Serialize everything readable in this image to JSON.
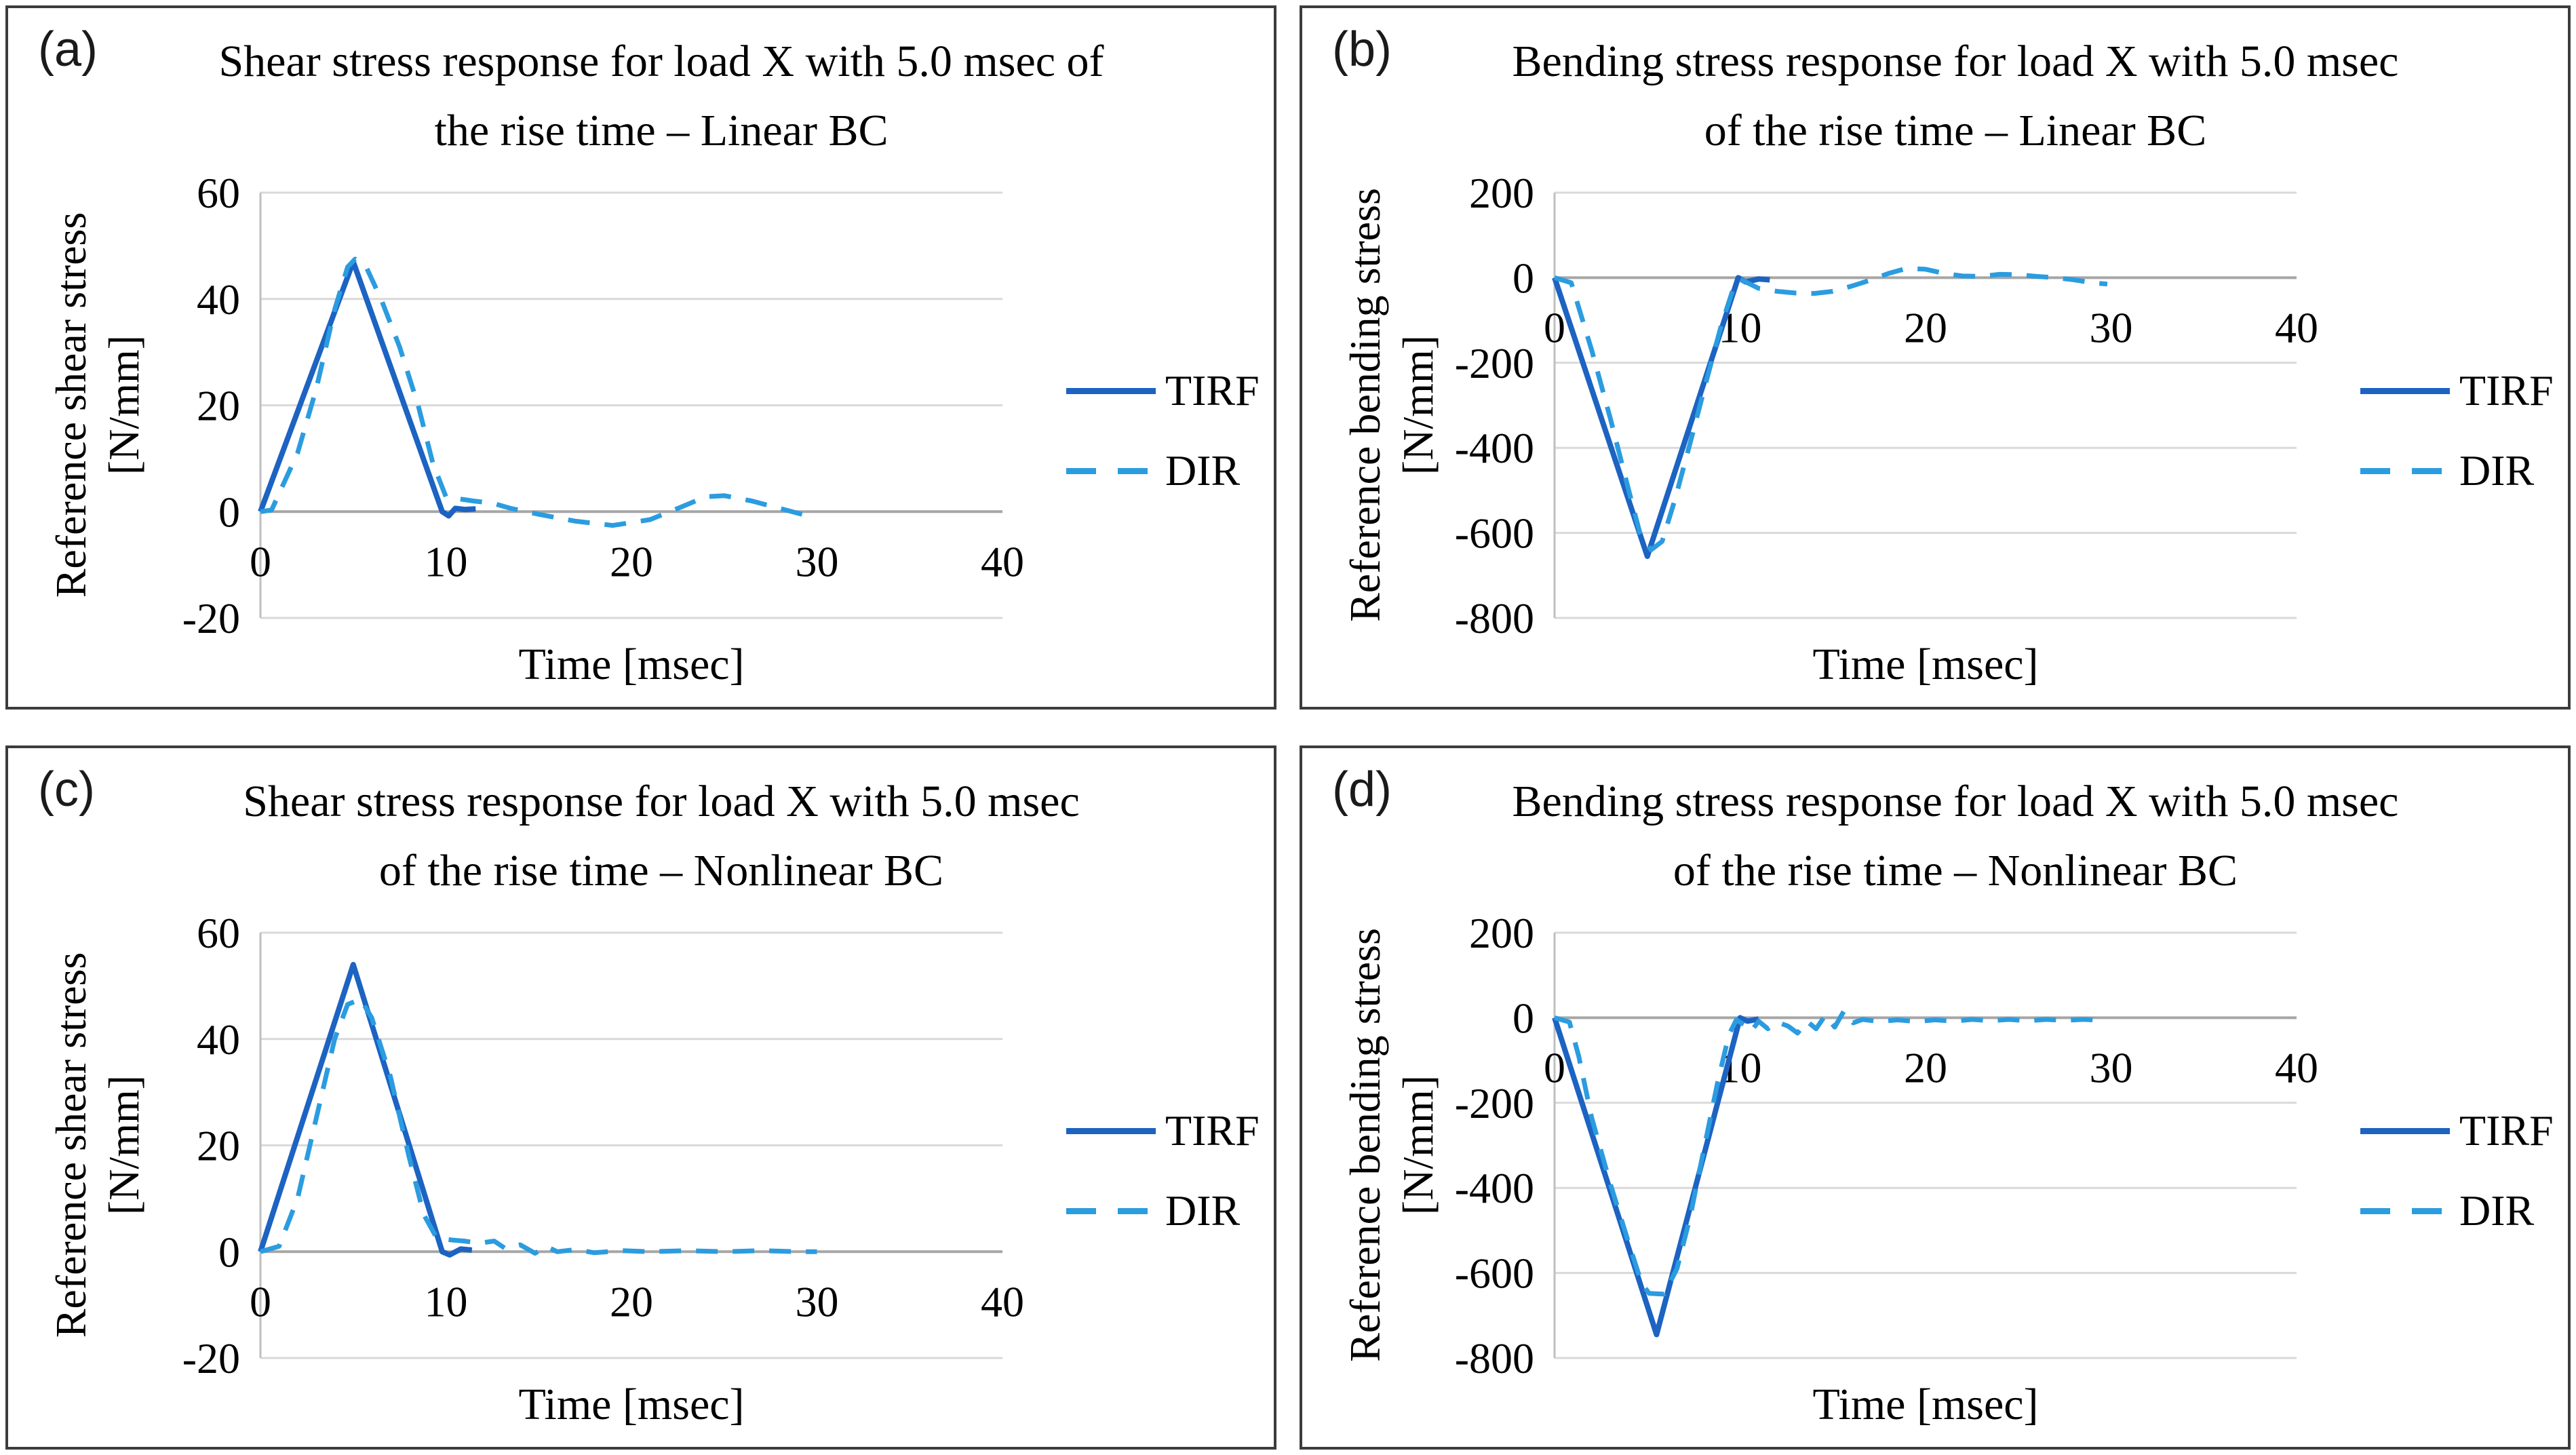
{
  "colors": {
    "tirf": "#1c63c2",
    "dir": "#2b9ce0",
    "grid": "#d9d9d9",
    "zero_line": "#a6a6a6",
    "axis_line": "#bfbfbf",
    "panel_border": "#3c3c3c",
    "text": "#000000"
  },
  "chart_data": [
    {
      "type": "line",
      "panel_label": "(a)",
      "title_line1": "Shear stress response for load X with 5.0 msec of",
      "title_line2": "the rise time – Linear BC",
      "ylabel_line1": "Reference shear stress",
      "ylabel_line2": "[N/mm]",
      "xlabel": "Time [msec]",
      "xlim": [
        0,
        40
      ],
      "ylim": [
        -20,
        60
      ],
      "xticks": [
        0,
        10,
        20,
        30,
        40
      ],
      "yticks": [
        60,
        40,
        20,
        0,
        -20
      ],
      "grid": true,
      "legend_position": "right",
      "series": [
        {
          "name": "TIRF",
          "style": "solid",
          "color_key": "tirf",
          "points": [
            [
              0,
              0
            ],
            [
              5,
              47
            ],
            [
              9.8,
              0
            ],
            [
              10.15,
              -0.8
            ],
            [
              10.5,
              0.6
            ],
            [
              11,
              0.4
            ],
            [
              11.6,
              0.5
            ]
          ]
        },
        {
          "name": "DIR",
          "style": "dashed",
          "color_key": "dir",
          "points": [
            [
              0,
              0
            ],
            [
              0.6,
              0.3
            ],
            [
              2,
              11
            ],
            [
              3,
              23
            ],
            [
              4,
              38
            ],
            [
              4.7,
              46
            ],
            [
              5.1,
              47.5
            ],
            [
              5.7,
              46
            ],
            [
              6.5,
              40
            ],
            [
              7.5,
              31
            ],
            [
              8.5,
              20
            ],
            [
              9.3,
              9
            ],
            [
              10,
              2.8
            ],
            [
              10.7,
              2.4
            ],
            [
              11.5,
              2
            ],
            [
              12.5,
              1.6
            ],
            [
              13.5,
              0.6
            ],
            [
              15,
              -0.5
            ],
            [
              17,
              -1.8
            ],
            [
              19,
              -2.6
            ],
            [
              21,
              -1.5
            ],
            [
              22.5,
              0.6
            ],
            [
              24,
              2.8
            ],
            [
              25,
              3
            ],
            [
              26.5,
              2
            ],
            [
              28,
              0.6
            ],
            [
              29.3,
              -0.6
            ]
          ]
        }
      ]
    },
    {
      "type": "line",
      "panel_label": "(b)",
      "title_line1": "Bending stress response for load X with 5.0 msec",
      "title_line2": "of the rise time – Linear BC",
      "ylabel_line1": "Reference bending stress",
      "ylabel_line2": "[N/mm]",
      "xlabel": "Time [msec]",
      "xlim": [
        0,
        40
      ],
      "ylim": [
        -800,
        200
      ],
      "xticks": [
        0,
        10,
        20,
        30,
        40
      ],
      "yticks": [
        200,
        0,
        -200,
        -400,
        -600,
        -800
      ],
      "grid": true,
      "legend_position": "right",
      "series": [
        {
          "name": "TIRF",
          "style": "solid",
          "color_key": "tirf",
          "points": [
            [
              0,
              0
            ],
            [
              5,
              -655
            ],
            [
              9.9,
              0
            ],
            [
              10.3,
              -10
            ],
            [
              11,
              -3
            ],
            [
              11.6,
              -5
            ]
          ]
        },
        {
          "name": "DIR",
          "style": "dashed",
          "color_key": "dir",
          "points": [
            [
              0,
              0
            ],
            [
              0.9,
              -12
            ],
            [
              2,
              -170
            ],
            [
              3,
              -330
            ],
            [
              4,
              -500
            ],
            [
              4.6,
              -600
            ],
            [
              5.2,
              -640
            ],
            [
              5.8,
              -620
            ],
            [
              6.5,
              -520
            ],
            [
              7.3,
              -390
            ],
            [
              8.2,
              -240
            ],
            [
              9,
              -110
            ],
            [
              9.6,
              -30
            ],
            [
              10,
              -3
            ],
            [
              10.4,
              -12
            ],
            [
              11,
              -25
            ],
            [
              12,
              -32
            ],
            [
              13,
              -36
            ],
            [
              14,
              -37
            ],
            [
              15,
              -32
            ],
            [
              16,
              -20
            ],
            [
              17,
              -6
            ],
            [
              18,
              10
            ],
            [
              19,
              22
            ],
            [
              20,
              20
            ],
            [
              21,
              10
            ],
            [
              22,
              4
            ],
            [
              23,
              3
            ],
            [
              24,
              8
            ],
            [
              25,
              7
            ],
            [
              26,
              3
            ],
            [
              27,
              0
            ],
            [
              28,
              -5
            ],
            [
              29,
              -12
            ],
            [
              29.8,
              -15
            ]
          ]
        }
      ]
    },
    {
      "type": "line",
      "panel_label": "(c)",
      "title_line1": "Shear stress response for load X with 5.0 msec",
      "title_line2": "of the rise time – Nonlinear BC",
      "ylabel_line1": "Reference shear stress",
      "ylabel_line2": "[N/mm]",
      "xlabel": "Time [msec]",
      "xlim": [
        0,
        40
      ],
      "ylim": [
        -20,
        60
      ],
      "xticks": [
        0,
        10,
        20,
        30,
        40
      ],
      "yticks": [
        60,
        40,
        20,
        0,
        -20
      ],
      "grid": true,
      "legend_position": "right",
      "series": [
        {
          "name": "TIRF",
          "style": "solid",
          "color_key": "tirf",
          "points": [
            [
              0,
              0
            ],
            [
              5,
              54
            ],
            [
              9.8,
              0
            ],
            [
              10.2,
              -0.6
            ],
            [
              10.8,
              0.5
            ],
            [
              11.4,
              0.3
            ]
          ]
        },
        {
          "name": "DIR",
          "style": "dashed",
          "color_key": "dir",
          "points": [
            [
              0,
              0
            ],
            [
              1,
              1
            ],
            [
              2,
              10
            ],
            [
              3,
              25
            ],
            [
              4,
              40
            ],
            [
              4.7,
              46.5
            ],
            [
              5.4,
              47.5
            ],
            [
              6,
              44
            ],
            [
              7,
              33
            ],
            [
              8,
              18
            ],
            [
              8.8,
              7
            ],
            [
              9.5,
              2.6
            ],
            [
              10.3,
              2.2
            ],
            [
              11,
              2
            ],
            [
              11.8,
              1.6
            ],
            [
              12.6,
              2
            ],
            [
              13.2,
              0.6
            ],
            [
              14,
              1.3
            ],
            [
              14.8,
              -0.3
            ],
            [
              15.4,
              1
            ],
            [
              16,
              0
            ],
            [
              17,
              0.4
            ],
            [
              18,
              -0.2
            ],
            [
              19.5,
              0.2
            ],
            [
              21,
              0
            ],
            [
              23,
              0.2
            ],
            [
              25,
              0
            ],
            [
              27,
              0.2
            ],
            [
              29,
              0
            ],
            [
              30,
              0
            ]
          ]
        }
      ]
    },
    {
      "type": "line",
      "panel_label": "(d)",
      "title_line1": "Bending stress response for load X with 5.0 msec",
      "title_line2": "of the rise time – Nonlinear BC",
      "ylabel_line1": "Reference bending stress",
      "ylabel_line2": "[N/mm]",
      "xlabel": "Time [msec]",
      "xlim": [
        0,
        40
      ],
      "ylim": [
        -800,
        200
      ],
      "xticks": [
        0,
        10,
        20,
        30,
        40
      ],
      "yticks": [
        200,
        0,
        -200,
        -400,
        -600,
        -800
      ],
      "grid": true,
      "legend_position": "right",
      "series": [
        {
          "name": "TIRF",
          "style": "solid",
          "color_key": "tirf",
          "points": [
            [
              0,
              0
            ],
            [
              5.5,
              -745
            ],
            [
              10,
              0
            ],
            [
              10.4,
              -8
            ],
            [
              11,
              -3
            ]
          ]
        },
        {
          "name": "DIR",
          "style": "dashed",
          "color_key": "dir",
          "points": [
            [
              0,
              0
            ],
            [
              0.8,
              -10
            ],
            [
              1.3,
              -90
            ],
            [
              2,
              -235
            ],
            [
              3,
              -390
            ],
            [
              4,
              -530
            ],
            [
              4.7,
              -625
            ],
            [
              5.1,
              -648
            ],
            [
              5.9,
              -650
            ],
            [
              6.6,
              -590
            ],
            [
              7.3,
              -470
            ],
            [
              8,
              -320
            ],
            [
              8.8,
              -150
            ],
            [
              9.4,
              -40
            ],
            [
              9.8,
              -5
            ],
            [
              10.2,
              -16
            ],
            [
              10.6,
              -32
            ],
            [
              11,
              -8
            ],
            [
              11.5,
              -26
            ],
            [
              12,
              -10
            ],
            [
              12.6,
              -20
            ],
            [
              13.1,
              -36
            ],
            [
              13.6,
              -8
            ],
            [
              14.1,
              -26
            ],
            [
              14.6,
              6
            ],
            [
              15.1,
              -22
            ],
            [
              15.6,
              16
            ],
            [
              16.1,
              -12
            ],
            [
              16.6,
              -4
            ],
            [
              17.5,
              -9
            ],
            [
              18.5,
              -5
            ],
            [
              19.5,
              -9
            ],
            [
              20.5,
              -5
            ],
            [
              21.5,
              -8
            ],
            [
              22.5,
              -4
            ],
            [
              23.5,
              -7
            ],
            [
              24.5,
              -4
            ],
            [
              25.5,
              -7
            ],
            [
              26.5,
              -4
            ],
            [
              27.5,
              -6
            ],
            [
              28.5,
              -4
            ],
            [
              29.5,
              -6
            ]
          ]
        }
      ]
    }
  ]
}
